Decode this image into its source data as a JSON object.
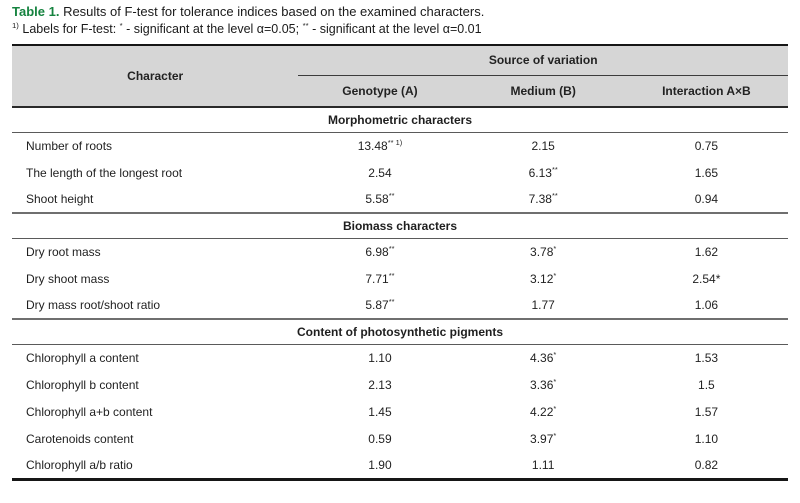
{
  "title": {
    "label": "Table 1.",
    "text": " Results of F-test for tolerance indices based on the examined characters."
  },
  "footnote_segments": [
    {
      "text": "1)",
      "sup": true
    },
    {
      "text": " Labels for F-test: ",
      "sup": false
    },
    {
      "text": "*",
      "sup": true
    },
    {
      "text": " - significant at the level α=0.05; ",
      "sup": false
    },
    {
      "text": "**",
      "sup": true
    },
    {
      "text": " - significant at the level α=0.01",
      "sup": false
    }
  ],
  "table": {
    "header": {
      "character": "Character",
      "source_of_variation": "Source of variation",
      "columns": [
        "Genotype (A)",
        "Medium (B)",
        "Interaction A×B"
      ]
    },
    "sections": [
      {
        "title": "Morphometric characters",
        "rows": [
          {
            "character": "Number of roots",
            "values": [
              {
                "v": "13.48",
                "sup": "** 1)"
              },
              {
                "v": "2.15",
                "sup": ""
              },
              {
                "v": "0.75",
                "sup": ""
              }
            ]
          },
          {
            "character": "The length of the longest root",
            "values": [
              {
                "v": "2.54",
                "sup": ""
              },
              {
                "v": "6.13",
                "sup": "**"
              },
              {
                "v": "1.65",
                "sup": ""
              }
            ]
          },
          {
            "character": "Shoot height",
            "values": [
              {
                "v": "5.58",
                "sup": "**"
              },
              {
                "v": "7.38",
                "sup": "**"
              },
              {
                "v": "0.94",
                "sup": ""
              }
            ]
          }
        ]
      },
      {
        "title": "Biomass characters",
        "rows": [
          {
            "character": "Dry root mass",
            "values": [
              {
                "v": "6.98",
                "sup": "**"
              },
              {
                "v": "3.78",
                "sup": "*"
              },
              {
                "v": "1.62",
                "sup": ""
              }
            ]
          },
          {
            "character": "Dry shoot mass",
            "values": [
              {
                "v": "7.71",
                "sup": "**"
              },
              {
                "v": "3.12",
                "sup": "*"
              },
              {
                "v": "2.54*",
                "sup": ""
              }
            ]
          },
          {
            "character": "Dry mass root/shoot ratio",
            "values": [
              {
                "v": "5.87",
                "sup": "**"
              },
              {
                "v": "1.77",
                "sup": ""
              },
              {
                "v": "1.06",
                "sup": ""
              }
            ]
          }
        ]
      },
      {
        "title": "Content of photosynthetic pigments",
        "rows": [
          {
            "character": "Chlorophyll a content",
            "values": [
              {
                "v": "1.10",
                "sup": ""
              },
              {
                "v": "4.36",
                "sup": "*"
              },
              {
                "v": "1.53",
                "sup": ""
              }
            ]
          },
          {
            "character": "Chlorophyll b content",
            "values": [
              {
                "v": "2.13",
                "sup": ""
              },
              {
                "v": "3.36",
                "sup": "*"
              },
              {
                "v": "1.5",
                "sup": ""
              }
            ]
          },
          {
            "character": "Chlorophyll a+b content",
            "values": [
              {
                "v": "1.45",
                "sup": ""
              },
              {
                "v": "4.22",
                "sup": "*"
              },
              {
                "v": "1.57",
                "sup": ""
              }
            ]
          },
          {
            "character": "Carotenoids content",
            "values": [
              {
                "v": "0.59",
                "sup": ""
              },
              {
                "v": "3.97",
                "sup": "*"
              },
              {
                "v": "1.10",
                "sup": ""
              }
            ]
          },
          {
            "character": "Chlorophyll a/b ratio",
            "values": [
              {
                "v": "1.90",
                "sup": ""
              },
              {
                "v": "1.11",
                "sup": ""
              },
              {
                "v": "0.82",
                "sup": ""
              }
            ]
          }
        ]
      }
    ]
  },
  "colors": {
    "accent_green": "#15833f",
    "header_bg": "#d6d6d6",
    "text": "#1f1f1f"
  }
}
